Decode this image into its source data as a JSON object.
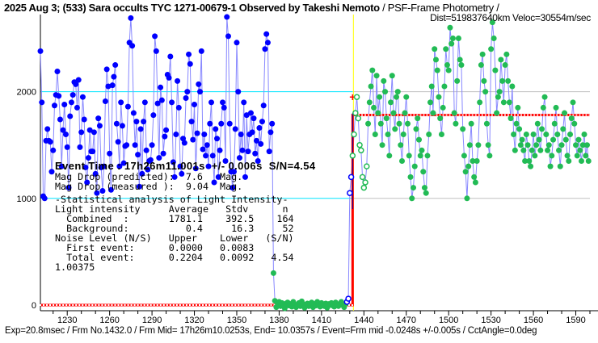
{
  "header": {
    "title": "2025 Aug 3; (533) Sara occults TYC 1271-00679-1 Observed by Takeshi Nemoto",
    "method": " / PSF-Frame Photometry /",
    "dist": "Dist=519837640km Veloc=30554m/sec"
  },
  "footer": "Exp=20.8msec / Frm No.1432.0 / Frm Mid= 17h26m10.0253s,  End= 10.0357s / Event=Frm mid -0.0248s +/-0.005s / CctAngle=0.0deg",
  "stats": {
    "event_time": "Event Time : 17h26m11.001s  +/- 0.006s  S/N=4.54",
    "lines": [
      "Mag Drop (predicted):  7.6   Mag.",
      "Mag Drop (measured ):  9.04  Mag.",
      "-Statistical analysis of Light Intensity-",
      "Light intensity     Average   Stdv      n",
      "  Combined  :       1781.1    392.5    164",
      "  Background:          0.4     16.3     52",
      "Noise Level (N/S)   Upper    Lower   (S/N)",
      "  First event:      0.0000   0.0083",
      "  Total event:      0.2204   0.0092   4.54",
      "1.00375"
    ]
  },
  "colors": {
    "before": "#0000ff",
    "after": "#22bb55",
    "step": "#ff0000",
    "event_line": "#ffff00",
    "grid_left": "#00e5ff",
    "grid": "#c0c0c0",
    "connector": "#8888ff"
  },
  "chart_data": {
    "type": "scatter",
    "xlim": [
      1211,
      1600
    ],
    "ylim": [
      -30,
      2730
    ],
    "x_ticks": [
      1230,
      1260,
      1290,
      1320,
      1350,
      1380,
      1410,
      1440,
      1470,
      1500,
      1530,
      1560,
      1590
    ],
    "y_ticks": [
      0,
      1000,
      2000
    ],
    "event_frame": 1432,
    "step_levels": {
      "before": 0,
      "after": 1781.1
    },
    "series": [
      {
        "marker": "filled-blue",
        "x_start": 1211,
        "values": [
          2380,
          1900,
          1020,
          1000,
          1540,
          1650,
          1540,
          1530,
          1250,
          1450,
          1870,
          1970,
          2190,
          1960,
          1740,
          1300,
          1640,
          1880,
          1600,
          1480,
          1100,
          1770,
          1900,
          1970,
          2090,
          2070,
          1850,
          2110,
          1480,
          1620,
          1950,
          1740,
          1290,
          1150,
          1380,
          1640,
          1440,
          1440,
          1620,
          1230,
          1050,
          1750,
          1680,
          1290,
          1070,
          1300,
          1910,
          2210,
          2050,
          1420,
          1080,
          2060,
          2140,
          2250,
          1700,
          1530,
          1300,
          1900,
          1680,
          1330,
          1490,
          1500,
          1860,
          2460,
          2690,
          2430,
          1800,
          1500,
          1720,
          1410,
          1110,
          1650,
          1230,
          1720,
          1900,
          1450,
          1270,
          1350,
          1360,
          1500,
          1780,
          2520,
          2380,
          1890,
          1380,
          2040,
          1920,
          1420,
          1580,
          1640,
          2160,
          2130,
          2330,
          1900,
          1340,
          1200,
          1600,
          2100,
          1850,
          1300,
          1230,
          1560,
          1520,
          1940,
          2000,
          2350,
          2260,
          1720,
          1550,
          1880,
          1280,
          1610,
          2070,
          2000,
          2380,
          1460,
          1600,
          1400,
          1500,
          1300,
          1700,
          1900,
          1400,
          1150,
          1650,
          1560,
          1200,
          1450,
          1700,
          1900,
          1850,
          1350,
          2700,
          2520,
          1700,
          1250,
          1100,
          1250,
          1650,
          2460,
          2000,
          1380,
          1600,
          1450,
          1900,
          1200,
          1780,
          1440,
          1600,
          1800,
          1620,
          1750,
          1420,
          1540,
          1350,
          1660,
          1510,
          1720,
          1870,
          2400,
          2540,
          2460,
          1440,
          1620,
          1700
        ]
      },
      {
        "marker": "filled-green",
        "x_start": 1376,
        "values": [
          300,
          40,
          -20,
          10,
          30,
          -10,
          20,
          0,
          -30,
          15,
          25,
          -5,
          10,
          -15,
          30,
          5,
          -20,
          0,
          20,
          -10,
          35,
          10,
          -25,
          5,
          15,
          -10,
          0,
          25,
          -20,
          10,
          -5,
          30,
          0,
          -15,
          20,
          5,
          -10,
          15,
          -25,
          10,
          0,
          20,
          -5,
          -15,
          25,
          10,
          -10,
          5,
          30,
          0,
          -20,
          10
        ]
      },
      {
        "marker": "hollow",
        "x_start": 1428,
        "values": [
          30,
          60,
          1050,
          1200,
          1400,
          1600,
          1800,
          1950,
          1750,
          1500,
          1450,
          1200,
          1100,
          1150,
          1300
        ]
      },
      {
        "marker": "filled-green",
        "x_start": 1443,
        "values": [
          1700,
          1900,
          2050,
          2200,
          1850,
          1600,
          2150,
          1800,
          1950,
          1700,
          1500,
          2100,
          2000,
          1750,
          1600,
          1400,
          1900,
          2150,
          1800,
          1650,
          1950,
          2000,
          1700,
          1500,
          1350,
          1600,
          1800,
          1950,
          1700,
          1400,
          1200,
          1000,
          1100,
          1300,
          1650,
          1750,
          1550,
          1400,
          1450,
          1250,
          1100,
          1050,
          1400,
          1600,
          1900,
          2050,
          1800,
          2400,
          2300,
          2200,
          1950,
          1750,
          1600,
          1850,
          2050,
          2400,
          2250,
          2200,
          2600,
          2450,
          2500,
          1800,
          1700,
          2100,
          2500,
          2300,
          2250,
          1650,
          1400,
          1250,
          1000,
          1300,
          1500,
          1700,
          1350,
          1200,
          1150,
          1350,
          1500,
          1900,
          2250,
          2350,
          2100,
          2000,
          1700,
          1500,
          1400,
          2400,
          2650,
          2500,
          2200,
          1800,
          1950,
          2000,
          2300,
          2100,
          1900,
          2250,
          2350,
          2100,
          1900,
          1750,
          2050,
          1600,
          1450,
          1700,
          1850,
          1650,
          1500,
          1550,
          1450,
          1350,
          1600,
          1500,
          1350,
          1300,
          1450,
          1600,
          1400,
          1500,
          1700,
          1550,
          1450,
          1650,
          1850,
          1950,
          1600,
          1450,
          1500,
          1300,
          1400,
          1550,
          1700,
          1850,
          1600,
          1450,
          1300,
          1500,
          1650,
          1800,
          1550,
          1400,
          1350,
          1600,
          1750,
          1900,
          1700,
          1500,
          1400,
          1550,
          1450,
          1350,
          1500,
          1600,
          1400,
          1500,
          1350
        ]
      }
    ]
  }
}
